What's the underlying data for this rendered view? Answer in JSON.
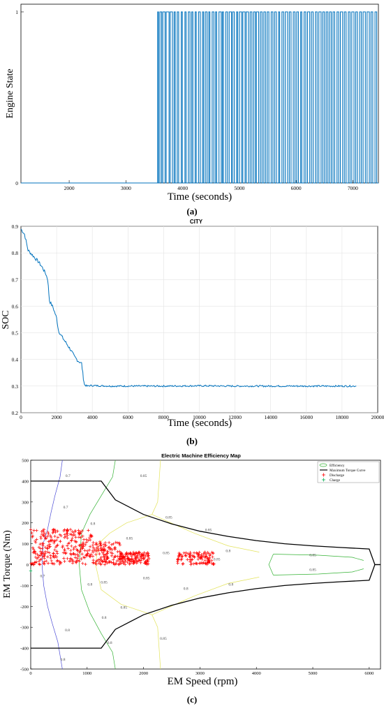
{
  "panels": [
    {
      "tag": "(a)"
    },
    {
      "tag": "(b)"
    },
    {
      "tag": "(c)"
    }
  ],
  "chart_data": [
    {
      "type": "line",
      "title": "",
      "xlabel": "Time (seconds)",
      "ylabel": "Engine State",
      "xlim": [
        1150,
        7450
      ],
      "ylim": [
        0,
        1
      ],
      "xticks": [
        2000,
        3000,
        4000,
        5000,
        6000,
        7000
      ],
      "yticks": [
        0,
        1
      ],
      "grid": false,
      "engine_on_start_s": 3560,
      "series_color": "#0072BD",
      "switch_times": [
        3575,
        3600,
        3630,
        3650,
        3690,
        3710,
        3760,
        3780,
        3820,
        3850,
        3870,
        3905,
        3930,
        3975,
        3995,
        4040,
        4060,
        4100,
        4130,
        4160,
        4180,
        4220,
        4240,
        4280,
        4310,
        4350,
        4370,
        4400,
        4430,
        4460,
        4480,
        4520,
        4550,
        4580,
        4600,
        4640,
        4680,
        4700,
        4720,
        4760,
        4790,
        4820,
        4860,
        4880,
        4910,
        4950,
        4970,
        5000,
        5040,
        5060,
        5100,
        5120,
        5160,
        5190,
        5220,
        5250,
        5280,
        5300,
        5340,
        5370,
        5400,
        5430,
        5460,
        5490,
        5520,
        5560,
        5590,
        5620,
        5650,
        5690,
        5710,
        5750,
        5780,
        5810,
        5850,
        5880,
        5910,
        5950,
        5980,
        6010,
        6040,
        6080,
        6100,
        6140,
        6170,
        6200,
        6240,
        6270,
        6300,
        6340,
        6370,
        6400,
        6440,
        6470,
        6500,
        6530,
        6560,
        6590,
        6620,
        6650,
        6680,
        6720,
        6750,
        6780,
        6820,
        6850,
        6880,
        6920,
        6950,
        6980,
        7020,
        7050,
        7080,
        7120,
        7150,
        7180,
        7220,
        7250,
        7290,
        7320,
        7350,
        7390,
        7420
      ]
    },
    {
      "type": "line",
      "title": "CITY",
      "xlabel": "Time (seconds)",
      "ylabel": "SOC",
      "xlim": [
        0,
        20000
      ],
      "ylim": [
        0.2,
        0.9
      ],
      "xticks": [
        0,
        2000,
        4000,
        6000,
        8000,
        10000,
        12000,
        14000,
        16000,
        18000,
        20000
      ],
      "yticks": [
        0.2,
        0.3,
        0.4,
        0.5,
        0.6,
        0.7,
        0.8,
        0.9
      ],
      "grid": true,
      "series_color": "#0072BD",
      "x": [
        0,
        200,
        400,
        600,
        800,
        1000,
        1200,
        1400,
        1500,
        1600,
        1800,
        2000,
        2100,
        2200,
        2400,
        2600,
        2800,
        3000,
        3200,
        3400,
        3500,
        3560,
        3700,
        3900,
        4500,
        5000,
        6000,
        8000,
        10000,
        12000,
        14000,
        16000,
        18000,
        18800
      ],
      "y": [
        0.89,
        0.87,
        0.81,
        0.795,
        0.78,
        0.765,
        0.745,
        0.72,
        0.7,
        0.62,
        0.595,
        0.555,
        0.51,
        0.495,
        0.475,
        0.455,
        0.435,
        0.41,
        0.395,
        0.385,
        0.33,
        0.305,
        0.3,
        0.302,
        0.301,
        0.3,
        0.3,
        0.3,
        0.301,
        0.3,
        0.3,
        0.3,
        0.3,
        0.3
      ]
    },
    {
      "type": "scatter",
      "title": "Electric Machine Efficiency Map",
      "xlabel": "EM Speed (rpm)",
      "ylabel": "EM Torque (Nm)",
      "xlim": [
        0,
        6200
      ],
      "ylim": [
        -500,
        500
      ],
      "xticks": [
        0,
        1000,
        2000,
        3000,
        4000,
        5000,
        6000
      ],
      "yticks": [
        -500,
        -400,
        -300,
        -200,
        -100,
        0,
        100,
        200,
        300,
        400,
        500
      ],
      "grid": false,
      "legend_position": "top-right",
      "legend": [
        "Efficiency",
        "Maximum Torque Curve",
        "Discharge",
        "Charge"
      ],
      "max_torque_curve": {
        "speed": [
          0,
          1250,
          1500,
          2000,
          2500,
          3000,
          3500,
          4000,
          4500,
          5000,
          5500,
          6000,
          6100,
          6200
        ],
        "torque": [
          400,
          400,
          310,
          240,
          195,
          160,
          135,
          115,
          100,
          90,
          82,
          75,
          0,
          0
        ]
      },
      "contour_labels": [
        "0.7",
        "0.7",
        "0.7",
        "0.8",
        "0.8",
        "0.8",
        "0.8",
        "0.85",
        "0.85",
        "0.85",
        "0.85",
        "0.85",
        "0.85",
        "0.85",
        "0.8",
        "0.8",
        "0.85",
        "0.85",
        "0.8",
        "0.85",
        "0.85",
        "0.85",
        "0.8",
        "0.8"
      ],
      "discharge_region": {
        "speed_range": [
          0,
          3250
        ],
        "torque_range": [
          0,
          170
        ]
      },
      "charge_points": [
        {
          "speed": 0,
          "torque": -30
        }
      ],
      "colors": {
        "discharge": "#FF0000",
        "charge": "#00B050",
        "max_torque": "#000000"
      }
    }
  ]
}
